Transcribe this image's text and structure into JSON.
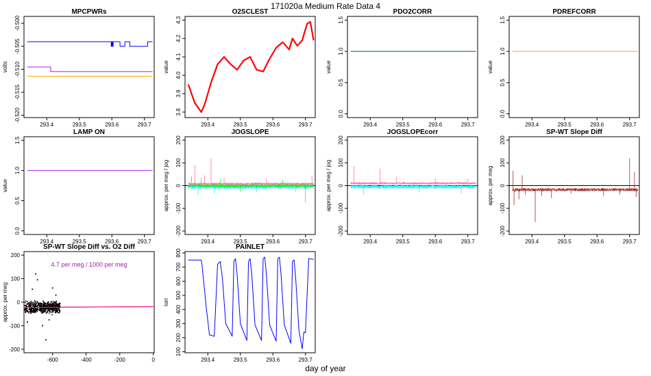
{
  "figure": {
    "title": "171020a   Medium Rate Data 4",
    "xlabel": "day of year"
  },
  "chart_data": [
    {
      "id": "mpcpwrs",
      "type": "line",
      "title": "MPCPWRs",
      "ylabel": "volts",
      "xlim": [
        293.33,
        293.73
      ],
      "ylim": [
        -0.5205,
        -0.4985
      ],
      "xticks": [
        293.4,
        293.5,
        293.6,
        293.7
      ],
      "xtick_labels": [
        "293.4",
        "293.5",
        "293.6",
        "293.7"
      ],
      "yticks": [
        -0.52,
        -0.515,
        -0.51,
        -0.505,
        -0.5
      ],
      "ytick_labels": [
        "-0.520",
        "-0.515",
        "-0.510",
        "-0.505",
        "-0.500"
      ],
      "ytick_rotate": true,
      "series": [
        {
          "color": "#0000ff",
          "x": [
            293.34,
            293.598,
            293.598,
            293.6,
            293.6,
            293.602,
            293.602,
            293.604,
            293.604,
            293.606,
            293.606,
            293.625,
            293.625,
            293.64,
            293.64,
            293.655,
            293.655,
            293.665,
            293.665,
            293.71,
            293.71,
            293.725
          ],
          "y": [
            -0.504,
            -0.504,
            -0.505,
            -0.505,
            -0.504,
            -0.504,
            -0.505,
            -0.505,
            -0.504,
            -0.504,
            -0.504,
            -0.504,
            -0.505,
            -0.505,
            -0.504,
            -0.504,
            -0.505,
            -0.505,
            -0.505,
            -0.505,
            -0.504,
            -0.504
          ]
        },
        {
          "color": "#a020f0",
          "x": [
            293.34,
            293.412,
            293.412,
            293.416,
            293.416,
            293.725
          ],
          "y": [
            -0.5095,
            -0.5095,
            -0.5105,
            -0.5105,
            -0.5105,
            -0.5105
          ]
        },
        {
          "color": "#ffa500",
          "x": [
            293.34,
            293.725
          ],
          "y": [
            -0.5115,
            -0.5115
          ]
        }
      ]
    },
    {
      "id": "o2sclest",
      "type": "line",
      "title": "O2SCLEST",
      "ylabel": "value",
      "xlim": [
        293.33,
        293.73
      ],
      "ylim": [
        3.77,
        4.32
      ],
      "xticks": [
        293.4,
        293.5,
        293.6,
        293.7
      ],
      "xtick_labels": [
        "293.4",
        "293.5",
        "293.6",
        "293.7"
      ],
      "yticks": [
        3.8,
        3.9,
        4.0,
        4.1,
        4.2,
        4.3
      ],
      "ytick_labels": [
        "3.8",
        "3.9",
        "4.0",
        "4.1",
        "4.2",
        "4.3"
      ],
      "ytick_rotate": true,
      "series": [
        {
          "color": "#ff0000",
          "width": 2.2,
          "x": [
            293.34,
            293.36,
            293.38,
            293.39,
            293.41,
            293.43,
            293.45,
            293.47,
            293.49,
            293.51,
            293.53,
            293.55,
            293.57,
            293.59,
            293.61,
            293.63,
            293.65,
            293.66,
            293.675,
            293.69,
            293.705,
            293.715,
            293.725
          ],
          "y": [
            3.95,
            3.85,
            3.8,
            3.84,
            3.96,
            4.06,
            4.1,
            4.06,
            4.03,
            4.08,
            4.1,
            4.03,
            4.02,
            4.09,
            4.15,
            4.18,
            4.14,
            4.2,
            4.16,
            4.19,
            4.28,
            4.29,
            4.19
          ]
        }
      ]
    },
    {
      "id": "pdo2corr",
      "type": "line",
      "title": "PDO2CORR",
      "ylabel": "value",
      "xlim": [
        293.33,
        293.73
      ],
      "ylim": [
        -0.06,
        1.56
      ],
      "xticks": [
        293.4,
        293.5,
        293.6,
        293.7
      ],
      "xtick_labels": [
        "293.4",
        "293.5",
        "293.6",
        "293.7"
      ],
      "yticks": [
        0.0,
        0.5,
        1.0,
        1.5
      ],
      "ytick_labels": [
        "0.0",
        "0.5",
        "1.0",
        "1.5"
      ],
      "ytick_rotate": true,
      "series": [
        {
          "color": "#006400",
          "x": [
            293.34,
            293.725
          ],
          "y": [
            1.0,
            1.0
          ]
        }
      ]
    },
    {
      "id": "pdrefcorr",
      "type": "line",
      "title": "PDREFCORR",
      "ylabel": "value",
      "xlim": [
        293.33,
        293.73
      ],
      "ylim": [
        -0.06,
        1.56
      ],
      "xticks": [
        293.4,
        293.5,
        293.6,
        293.7
      ],
      "xtick_labels": [
        "293.4",
        "293.5",
        "293.6",
        "293.7"
      ],
      "yticks": [
        0.0,
        0.5,
        1.0,
        1.5
      ],
      "ytick_labels": [
        "0.0",
        "0.5",
        "1.0",
        "1.5"
      ],
      "ytick_rotate": true,
      "series": [
        {
          "color": "#ffa500",
          "x": [
            293.34,
            293.725
          ],
          "y": [
            1.0,
            1.0
          ]
        }
      ]
    },
    {
      "id": "lampon",
      "type": "line",
      "title": "LAMP ON",
      "ylabel": "value",
      "xlim": [
        293.33,
        293.73
      ],
      "ylim": [
        -0.06,
        1.56
      ],
      "xticks": [
        293.4,
        293.5,
        293.6,
        293.7
      ],
      "xtick_labels": [
        "293.4",
        "293.5",
        "293.6",
        "293.7"
      ],
      "yticks": [
        0.0,
        0.5,
        1.0,
        1.5
      ],
      "ytick_labels": [
        "0.0",
        "0.5",
        "1.0",
        "1.5"
      ],
      "ytick_rotate": true,
      "series": [
        {
          "color": "#a020f0",
          "x": [
            293.34,
            293.725
          ],
          "y": [
            1.0,
            1.0
          ]
        }
      ]
    },
    {
      "id": "jogslope",
      "type": "line",
      "title": "JOGSLOPE",
      "ylabel": "approx. per meg / jog",
      "xlim": [
        293.33,
        293.73
      ],
      "ylim": [
        -215,
        215
      ],
      "xticks": [
        293.4,
        293.5,
        293.6,
        293.7
      ],
      "xtick_labels": [
        "293.4",
        "293.5",
        "293.6",
        "293.7"
      ],
      "yticks": [
        -200,
        -100,
        0,
        100,
        200
      ],
      "ytick_labels": [
        "-200",
        "-100",
        "0",
        "100",
        "200"
      ],
      "ytick_rotate": true,
      "zero_line": true,
      "series": [
        {
          "color": "#00ffff",
          "x": [
            293.34,
            293.725
          ],
          "y": [
            -5,
            -5
          ],
          "noise": 9,
          "spikes": [
            [
              293.37,
              -40
            ],
            [
              293.42,
              -35
            ],
            [
              293.55,
              -30
            ],
            [
              293.67,
              -28
            ]
          ]
        },
        {
          "color": "#00ff00",
          "x": [
            293.34,
            293.725
          ],
          "y": [
            0,
            0
          ],
          "noise": 8,
          "spikes": [
            [
              293.35,
              40
            ],
            [
              293.38,
              35
            ],
            [
              293.44,
              30
            ],
            [
              293.5,
              -25
            ],
            [
              293.63,
              25
            ]
          ]
        },
        {
          "color": "#ff69b4",
          "x": [
            293.34,
            293.725
          ],
          "y": [
            8,
            8
          ],
          "noise": 5,
          "spikes": [
            [
              293.36,
              90
            ],
            [
              293.41,
              120
            ],
            [
              293.39,
              45
            ],
            [
              293.45,
              35
            ],
            [
              293.58,
              30
            ],
            [
              293.7,
              -75
            ],
            [
              293.72,
              45
            ]
          ]
        }
      ]
    },
    {
      "id": "jogslopecorr",
      "type": "line",
      "title": "JOGSLOPEcorr",
      "ylabel": "approx. per meg / jog",
      "xlim": [
        293.33,
        293.73
      ],
      "ylim": [
        -215,
        215
      ],
      "xticks": [
        293.4,
        293.5,
        293.6,
        293.7
      ],
      "xtick_labels": [
        "293.4",
        "293.5",
        "293.6",
        "293.7"
      ],
      "yticks": [
        -200,
        -100,
        0,
        100,
        200
      ],
      "ytick_labels": [
        "-200",
        "-100",
        "0",
        "100",
        "200"
      ],
      "ytick_rotate": true,
      "zero_line": true,
      "series": [
        {
          "color": "#00ffff",
          "x": [
            293.34,
            293.725
          ],
          "y": [
            -5,
            -5
          ],
          "noise": 8,
          "spikes": [
            [
              293.38,
              -40
            ],
            [
              293.55,
              -30
            ],
            [
              293.68,
              -35
            ]
          ]
        },
        {
          "color": "#ff69b4",
          "x": [
            293.34,
            293.725
          ],
          "y": [
            10,
            10
          ],
          "noise": 5,
          "spikes": [
            [
              293.35,
              85
            ],
            [
              293.43,
              75
            ],
            [
              293.48,
              40
            ],
            [
              293.6,
              30
            ],
            [
              293.7,
              30
            ]
          ]
        }
      ]
    },
    {
      "id": "spwtslopediff",
      "type": "line",
      "title": "SP-WT Slope Diff",
      "ylabel": "approx. per meg",
      "xlim": [
        293.33,
        293.73
      ],
      "ylim": [
        -215,
        215
      ],
      "xticks": [
        293.4,
        293.5,
        293.6,
        293.7
      ],
      "xtick_labels": [
        "293.4",
        "293.5",
        "293.6",
        "293.7"
      ],
      "yticks": [
        -200,
        -100,
        0,
        100,
        200
      ],
      "ytick_labels": [
        "-200",
        "-100",
        "0",
        "100",
        "200"
      ],
      "ytick_rotate": true,
      "zero_line": true,
      "series": [
        {
          "color": "#a52a2a",
          "x": [
            293.34,
            293.725
          ],
          "y": [
            -18,
            -18
          ],
          "noise": 7,
          "spikes": [
            [
              293.342,
              65
            ],
            [
              293.345,
              -85
            ],
            [
              293.36,
              -60
            ],
            [
              293.37,
              45
            ],
            [
              293.38,
              -40
            ],
            [
              293.41,
              -160
            ],
            [
              293.46,
              -55
            ],
            [
              293.43,
              -45
            ],
            [
              293.52,
              -35
            ],
            [
              293.62,
              -45
            ],
            [
              293.67,
              -40
            ],
            [
              293.7,
              120
            ],
            [
              293.715,
              60
            ],
            [
              293.72,
              -50
            ]
          ]
        }
      ]
    },
    {
      "id": "spwtvso2",
      "type": "scatter",
      "title": "SP-WT Slope Diff vs. O2 Diff",
      "ylabel": "approx. per meg",
      "annotation": "4.7 per meg / 1000 per meg",
      "annotation_color": "#a020a0",
      "xlim": [
        -770,
        5
      ],
      "ylim": [
        -215,
        215
      ],
      "xticks": [
        -600,
        -400,
        -200,
        0
      ],
      "xtick_labels": [
        "-600",
        "-400",
        "-200",
        "0"
      ],
      "yticks": [
        -200,
        -100,
        0,
        100,
        200
      ],
      "ytick_labels": [
        "-200",
        "-100",
        "0",
        "100",
        "200"
      ],
      "ytick_rotate": false,
      "points": {
        "color": "#000000",
        "xmin": -765,
        "xmax": -555,
        "ycenter": -22,
        "yspread": 22,
        "n": 600,
        "outliers": [
          [
            -700,
            120
          ],
          [
            -690,
            95
          ],
          [
            -640,
            -160
          ],
          [
            -720,
            55
          ],
          [
            -660,
            -100
          ],
          [
            -600,
            60
          ],
          [
            -580,
            30
          ],
          [
            -750,
            -85
          ],
          [
            -620,
            -75
          ]
        ]
      },
      "fit": {
        "color": "#ff1493",
        "x": [
          -770,
          0
        ],
        "y": [
          -22.5,
          -18.9
        ]
      },
      "trend": {
        "color": "#7f7f7f",
        "x": [
          -555,
          0
        ],
        "y": [
          -21.5,
          -18.9
        ]
      }
    },
    {
      "id": "painlet",
      "type": "line",
      "title": "PAINLET",
      "ylabel": "torr",
      "xlim": [
        293.33,
        293.73
      ],
      "ylim": [
        93,
        810
      ],
      "xticks": [
        293.4,
        293.5,
        293.6,
        293.7
      ],
      "xtick_labels": [
        "293.4",
        "293.5",
        "293.6",
        "293.7"
      ],
      "yticks": [
        100,
        200,
        300,
        400,
        500,
        600,
        700,
        800
      ],
      "ytick_labels": [
        "100",
        "200",
        "300",
        "400",
        "500",
        "600",
        "700",
        "800"
      ],
      "ytick_rotate": true,
      "series": [
        {
          "color": "#0000ff",
          "x": [
            293.34,
            293.38,
            293.382,
            293.395,
            293.405,
            293.42,
            293.43,
            293.438,
            293.445,
            293.455,
            293.475,
            293.48,
            293.485,
            293.49,
            293.5,
            293.52,
            293.525,
            293.53,
            293.535,
            293.545,
            293.565,
            293.57,
            293.575,
            293.58,
            293.59,
            293.61,
            293.615,
            293.62,
            293.625,
            293.635,
            293.655,
            293.66,
            293.665,
            293.67,
            293.68,
            293.69,
            293.695,
            293.7,
            293.71,
            293.725
          ],
          "y": [
            750,
            750,
            720,
            420,
            220,
            210,
            720,
            740,
            620,
            300,
            210,
            740,
            760,
            650,
            300,
            180,
            740,
            760,
            650,
            290,
            180,
            760,
            770,
            650,
            290,
            175,
            760,
            770,
            650,
            290,
            160,
            740,
            750,
            620,
            250,
            120,
            240,
            235,
            760,
            755
          ]
        }
      ]
    }
  ]
}
